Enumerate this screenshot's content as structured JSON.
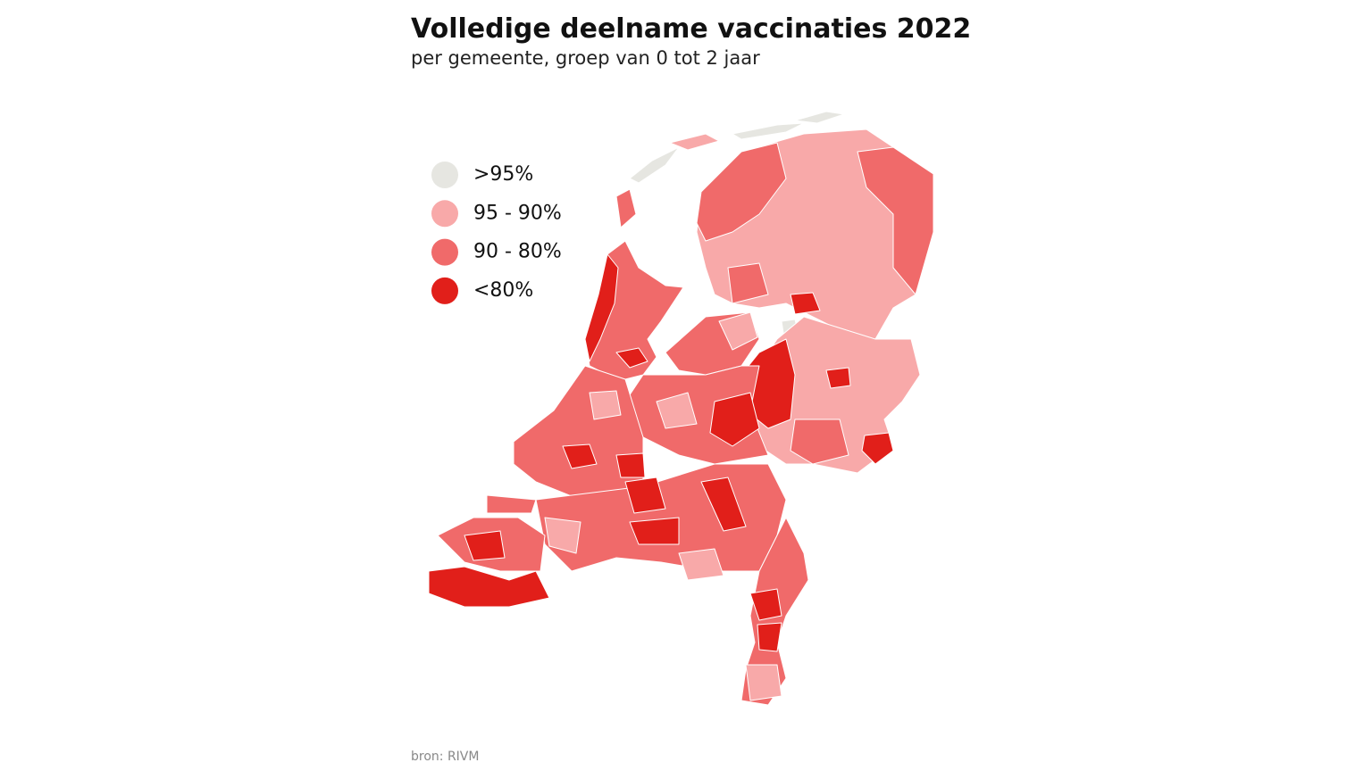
{
  "header": {
    "title": "Volledige deelname vaccinaties 2022",
    "subtitle": "per gemeente, groep van 0 tot 2 jaar"
  },
  "legend": {
    "items": [
      {
        "label": ">95%",
        "color": "#e6e6e1"
      },
      {
        "label": "95 - 90%",
        "color": "#f8a9a9"
      },
      {
        "label": "90 - 80%",
        "color": "#f06a6a"
      },
      {
        "label": "<80%",
        "color": "#e11f1a"
      }
    ]
  },
  "source": "bron: RIVM"
}
